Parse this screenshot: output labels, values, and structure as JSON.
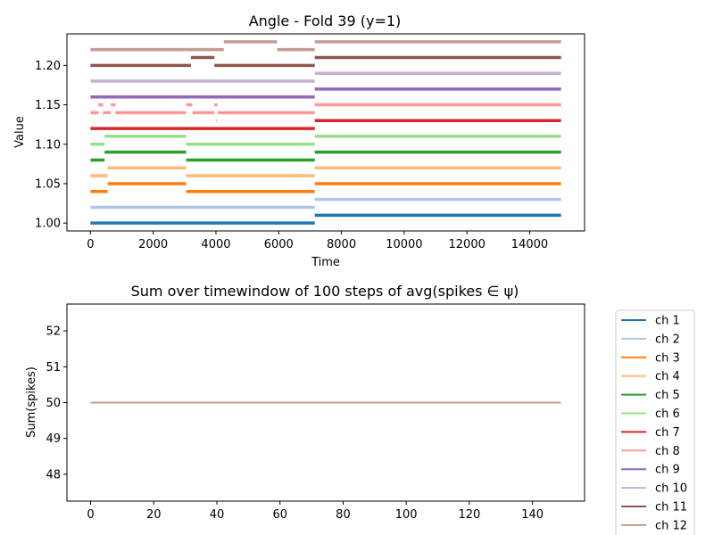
{
  "chart_data": [
    {
      "type": "line",
      "title": "Angle - Fold 39 (y=1)",
      "xlabel": "Time",
      "ylabel": "Value",
      "xlim": [
        -750,
        15750
      ],
      "ylim": [
        0.99,
        1.24
      ],
      "xticks": [
        0,
        2000,
        4000,
        6000,
        8000,
        10000,
        12000,
        14000
      ],
      "yticks": [
        1.0,
        1.05,
        1.1,
        1.15,
        1.2
      ],
      "ytick_labels": [
        "1.00",
        "1.05",
        "1.10",
        "1.15",
        "1.20"
      ],
      "series": [
        {
          "color": "#1f77b4",
          "segments": [
            [
              0,
              7150,
              1.0
            ],
            [
              7150,
              15000,
              1.01
            ]
          ]
        },
        {
          "color": "#aec7e8",
          "segments": [
            [
              0,
              7150,
              1.02
            ],
            [
              7150,
              15000,
              1.03
            ]
          ]
        },
        {
          "color": "#ff7f0e",
          "segments": [
            [
              0,
              550,
              1.04
            ],
            [
              550,
              3050,
              1.05
            ],
            [
              3050,
              7150,
              1.04
            ],
            [
              7150,
              15000,
              1.05
            ]
          ]
        },
        {
          "color": "#ffbb78",
          "segments": [
            [
              0,
              550,
              1.06
            ],
            [
              550,
              3050,
              1.07
            ],
            [
              3050,
              7150,
              1.06
            ],
            [
              7150,
              15000,
              1.07
            ]
          ]
        },
        {
          "color": "#2ca02c",
          "segments": [
            [
              0,
              450,
              1.08
            ],
            [
              450,
              3050,
              1.09
            ],
            [
              3050,
              7150,
              1.08
            ],
            [
              7150,
              15000,
              1.09
            ]
          ]
        },
        {
          "color": "#98df8a",
          "segments": [
            [
              0,
              450,
              1.1
            ],
            [
              450,
              3050,
              1.11
            ],
            [
              3050,
              7150,
              1.1
            ],
            [
              7150,
              15000,
              1.11
            ]
          ]
        },
        {
          "color": "#d62728",
          "segments": [
            [
              0,
              7150,
              1.12
            ],
            [
              4000,
              4010,
              1.13
            ],
            [
              7150,
              15000,
              1.13
            ]
          ]
        },
        {
          "color": "#ff9896",
          "segments": [
            [
              0,
              250,
              1.14
            ],
            [
              250,
              400,
              1.15
            ],
            [
              400,
              650,
              1.14
            ],
            [
              650,
              800,
              1.15
            ],
            [
              800,
              3050,
              1.14
            ],
            [
              3050,
              3250,
              1.15
            ],
            [
              3250,
              3950,
              1.14
            ],
            [
              3950,
              4050,
              1.15
            ],
            [
              4050,
              7150,
              1.14
            ],
            [
              7150,
              15000,
              1.15
            ]
          ]
        },
        {
          "color": "#9467bd",
          "segments": [
            [
              0,
              7150,
              1.16
            ],
            [
              7150,
              15000,
              1.17
            ]
          ]
        },
        {
          "color": "#c5b0d5",
          "segments": [
            [
              0,
              7150,
              1.18
            ],
            [
              7150,
              15000,
              1.19
            ]
          ]
        },
        {
          "color": "#8c564b",
          "segments": [
            [
              0,
              3200,
              1.2
            ],
            [
              3200,
              3950,
              1.21
            ],
            [
              3950,
              7150,
              1.2
            ],
            [
              7150,
              15000,
              1.21
            ]
          ]
        },
        {
          "color": "#c49c94",
          "segments": [
            [
              0,
              4250,
              1.22
            ],
            [
              4250,
              5950,
              1.23
            ],
            [
              5950,
              7150,
              1.22
            ],
            [
              7150,
              15000,
              1.23
            ]
          ]
        }
      ]
    },
    {
      "type": "line",
      "title": "Sum over timewindow of 100 steps of avg(spikes ∈ ψ)",
      "xlabel": "",
      "ylabel": "Sum(spikes)",
      "xlim": [
        -7.5,
        156.5
      ],
      "ylim": [
        47.25,
        52.75
      ],
      "xticks": [
        0,
        20,
        40,
        60,
        80,
        100,
        120,
        140
      ],
      "yticks": [
        48,
        49,
        50,
        51,
        52
      ],
      "legend_position": "outside-right",
      "series": [
        {
          "name": "ch 1",
          "color": "#1f77b4",
          "x": [
            0,
            149
          ],
          "y": [
            50,
            50
          ]
        },
        {
          "name": "ch 2",
          "color": "#aec7e8",
          "x": [
            0,
            149
          ],
          "y": [
            50,
            50
          ]
        },
        {
          "name": "ch 3",
          "color": "#ff7f0e",
          "x": [
            0,
            149
          ],
          "y": [
            50,
            50
          ]
        },
        {
          "name": "ch 4",
          "color": "#ffbb78",
          "x": [
            0,
            149
          ],
          "y": [
            50,
            50
          ]
        },
        {
          "name": "ch 5",
          "color": "#2ca02c",
          "x": [
            0,
            149
          ],
          "y": [
            50,
            50
          ]
        },
        {
          "name": "ch 6",
          "color": "#98df8a",
          "x": [
            0,
            149
          ],
          "y": [
            50,
            50
          ]
        },
        {
          "name": "ch 7",
          "color": "#d62728",
          "x": [
            0,
            149
          ],
          "y": [
            50,
            50
          ]
        },
        {
          "name": "ch 8",
          "color": "#ff9896",
          "x": [
            0,
            149
          ],
          "y": [
            50,
            50
          ]
        },
        {
          "name": "ch 9",
          "color": "#9467bd",
          "x": [
            0,
            149
          ],
          "y": [
            50,
            50
          ]
        },
        {
          "name": "ch 10",
          "color": "#c5b0d5",
          "x": [
            0,
            149
          ],
          "y": [
            50,
            50
          ]
        },
        {
          "name": "ch 11",
          "color": "#8c564b",
          "x": [
            0,
            149
          ],
          "y": [
            50,
            50
          ]
        },
        {
          "name": "ch 12",
          "color": "#c49c94",
          "x": [
            0,
            149
          ],
          "y": [
            50,
            50
          ]
        }
      ]
    }
  ]
}
